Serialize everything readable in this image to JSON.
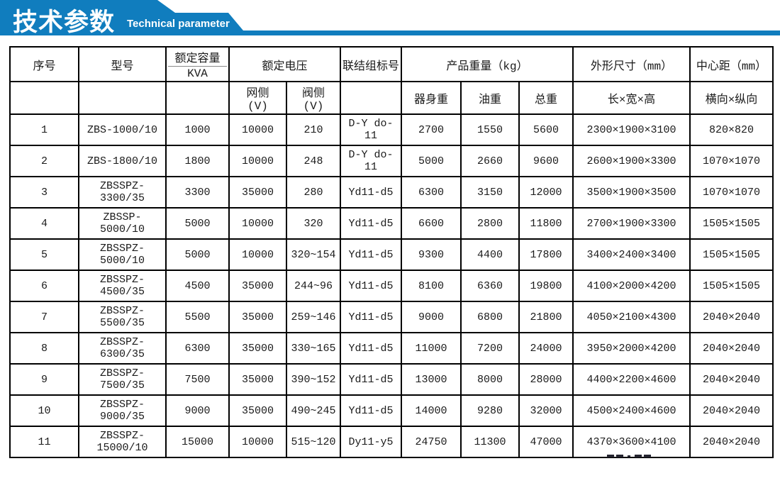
{
  "banner": {
    "title": "技术参数",
    "subtitle": "Technical parameter",
    "accent_color": "#107dbe"
  },
  "table": {
    "header_row1": [
      {
        "label": "序号"
      },
      {
        "label": "型号"
      },
      {
        "label": "额定容量",
        "sub_label": "KVA",
        "divided": true
      },
      {
        "label": "额定电压",
        "colspan": 2
      },
      {
        "label": "联结组标号"
      },
      {
        "label": "产品重量（kg）",
        "colspan": 3
      },
      {
        "label": "外形尺寸（mm）"
      },
      {
        "label": "中心距（mm）"
      }
    ],
    "header_row2": [
      "",
      "",
      "",
      "网侧\n(V)",
      "阀侧\n(V)",
      "",
      "器身重",
      "油重",
      "总重",
      "长×宽×高",
      "横向×纵向"
    ],
    "column_keys": [
      "serial",
      "model",
      "rated-capacity",
      "grid-side-voltage",
      "valve-side-voltage",
      "connection-group",
      "body-weight",
      "oil-weight",
      "total-weight",
      "dimensions",
      "center-distance"
    ],
    "rows": [
      [
        "1",
        "ZBS-1000/10",
        "1000",
        "10000",
        "210",
        "D-Y do-\n11",
        "2700",
        "1550",
        "5600",
        "2300×1900×3100",
        "820×820"
      ],
      [
        "2",
        "ZBS-1800/10",
        "1800",
        "10000",
        "248",
        "D-Y do-\n11",
        "5000",
        "2660",
        "9600",
        "2600×1900×3300",
        "1070×1070"
      ],
      [
        "3",
        "ZBSSPZ-3300/35",
        "3300",
        "35000",
        "280",
        "Yd11-d5",
        "6300",
        "3150",
        "12000",
        "3500×1900×3500",
        "1070×1070"
      ],
      [
        "4",
        "ZBSSP-5000/10",
        "5000",
        "10000",
        "320",
        "Yd11-d5",
        "6600",
        "2800",
        "11800",
        "2700×1900×3300",
        "1505×1505"
      ],
      [
        "5",
        "ZBSSPZ-5000/10",
        "5000",
        "10000",
        "320~154",
        "Yd11-d5",
        "9300",
        "4400",
        "17800",
        "3400×2400×3400",
        "1505×1505"
      ],
      [
        "6",
        "ZBSSPZ-4500/35",
        "4500",
        "35000",
        "244~96",
        "Yd11-d5",
        "8100",
        "6360",
        "19800",
        "4100×2000×4200",
        "1505×1505"
      ],
      [
        "7",
        "ZBSSPZ-5500/35",
        "5500",
        "35000",
        "259~146",
        "Yd11-d5",
        "9000",
        "6800",
        "21800",
        "4050×2100×4300",
        "2040×2040"
      ],
      [
        "8",
        "ZBSSPZ-6300/35",
        "6300",
        "35000",
        "330~165",
        "Yd11-d5",
        "11000",
        "7200",
        "24000",
        "3950×2000×4200",
        "2040×2040"
      ],
      [
        "9",
        "ZBSSPZ-7500/35",
        "7500",
        "35000",
        "390~152",
        "Yd11-d5",
        "13000",
        "8000",
        "28000",
        "4400×2200×4600",
        "2040×2040"
      ],
      [
        "10",
        "ZBSSPZ-9000/35",
        "9000",
        "35000",
        "490~245",
        "Yd11-d5",
        "14000",
        "9280",
        "32000",
        "4500×2400×4600",
        "2040×2040"
      ],
      [
        "11",
        "ZBSSPZ-15000/10",
        "15000",
        "10000",
        "515~120",
        "Dy11-y5",
        "24750",
        "11300",
        "47000",
        "4370×3600×4100",
        "2040×2040"
      ]
    ]
  }
}
